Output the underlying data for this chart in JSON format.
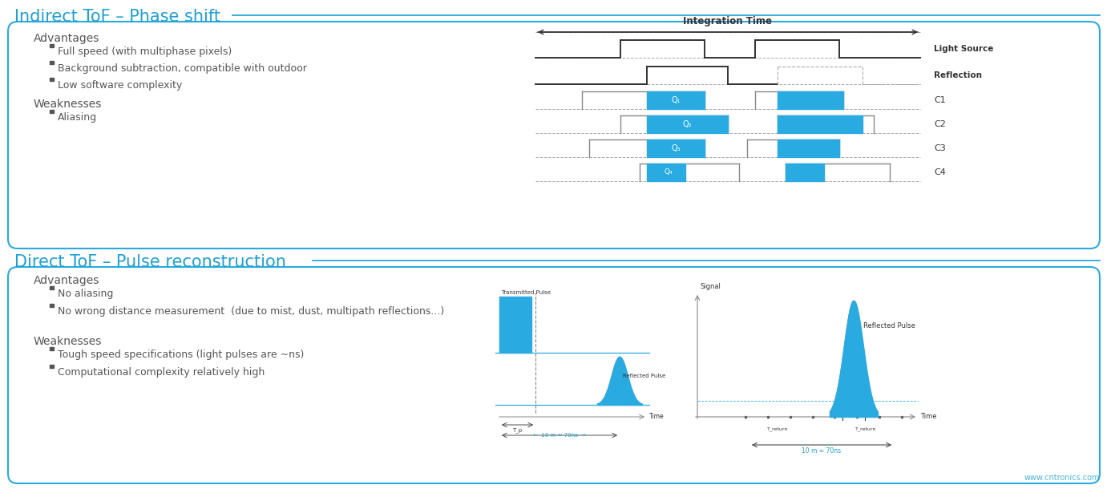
{
  "title1": "Indirect ToF – Phase shift",
  "title2": "Direct ToF – Pulse reconstruction",
  "title_color": "#1ea0d5",
  "bg_color": "#ffffff",
  "box_border_color": "#29abe2",
  "text_color": "#555555",
  "bullet_color": "#555555",
  "adv1_title": "Advantages",
  "adv1_bullets": [
    "Full speed (with multiphase pixels)",
    "Background subtraction, compatible with outdoor",
    "Low software complexity"
  ],
  "weak1_title": "Weaknesses",
  "weak1_bullets": [
    "Aliasing"
  ],
  "adv2_title": "Advantages",
  "adv2_bullets": [
    "No aliasing",
    "No wrong distance measurement  (due to mist, dust, multipath reflections...)"
  ],
  "weak2_title": "Weaknesses",
  "weak2_bullets": [
    "Tough speed specifications (light pulses are ~ns)",
    "Computational complexity relatively high"
  ],
  "integration_time_label": "Integration Time",
  "blue_color": "#29abe2",
  "dark_color": "#333333",
  "dash_color": "#aaaaaa",
  "gray_color": "#888888",
  "watermark": "www.cntronics.com"
}
